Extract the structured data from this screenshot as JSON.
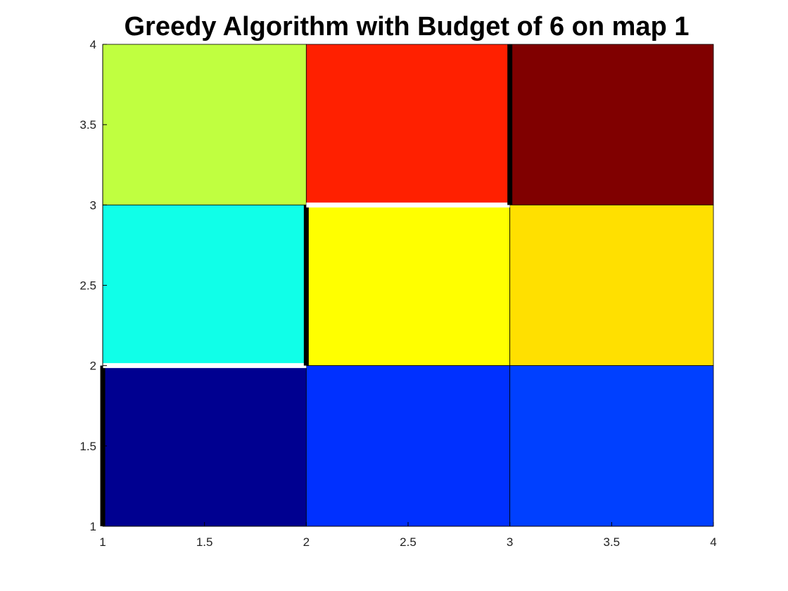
{
  "chart_data": {
    "type": "heatmap",
    "title": "Greedy Algorithm with Budget of 6 on map 1",
    "xlabel": "",
    "ylabel": "",
    "xlim": [
      1,
      4
    ],
    "ylim": [
      1,
      4
    ],
    "xticks": [
      1,
      1.5,
      2,
      2.5,
      3,
      3.5,
      4
    ],
    "yticks": [
      1,
      1.5,
      2,
      2.5,
      3,
      3.5,
      4
    ],
    "xtick_labels": [
      "1",
      "1.5",
      "2",
      "2.5",
      "3",
      "3.5",
      "4"
    ],
    "ytick_labels": [
      "1",
      "1.5",
      "2",
      "2.5",
      "3",
      "3.5",
      "4"
    ],
    "grid": false,
    "cells": [
      {
        "x": [
          1,
          2
        ],
        "y": [
          3,
          4
        ],
        "color": "#c0ff40"
      },
      {
        "x": [
          2,
          3
        ],
        "y": [
          3,
          4
        ],
        "color": "#ff2000"
      },
      {
        "x": [
          3,
          4
        ],
        "y": [
          3,
          4
        ],
        "color": "#800000"
      },
      {
        "x": [
          1,
          2
        ],
        "y": [
          2,
          3
        ],
        "color": "#10ffe8"
      },
      {
        "x": [
          2,
          3
        ],
        "y": [
          2,
          3
        ],
        "color": "#ffff00"
      },
      {
        "x": [
          3,
          4
        ],
        "y": [
          2,
          3
        ],
        "color": "#ffe000"
      },
      {
        "x": [
          1,
          2
        ],
        "y": [
          1,
          2
        ],
        "color": "#000090"
      },
      {
        "x": [
          2,
          3
        ],
        "y": [
          1,
          2
        ],
        "color": "#0030ff"
      },
      {
        "x": [
          3,
          4
        ],
        "y": [
          1,
          2
        ],
        "color": "#0040ff"
      }
    ],
    "path_segments": [
      {
        "from": [
          1,
          1
        ],
        "to": [
          1,
          2
        ],
        "color": "#000000"
      },
      {
        "from": [
          1,
          2
        ],
        "to": [
          2,
          2
        ],
        "color": "#ffffff"
      },
      {
        "from": [
          2,
          2
        ],
        "to": [
          2,
          3
        ],
        "color": "#000000"
      },
      {
        "from": [
          2,
          3
        ],
        "to": [
          3,
          3
        ],
        "color": "#ffffff"
      },
      {
        "from": [
          3,
          3
        ],
        "to": [
          3,
          4
        ],
        "color": "#000000"
      }
    ]
  }
}
